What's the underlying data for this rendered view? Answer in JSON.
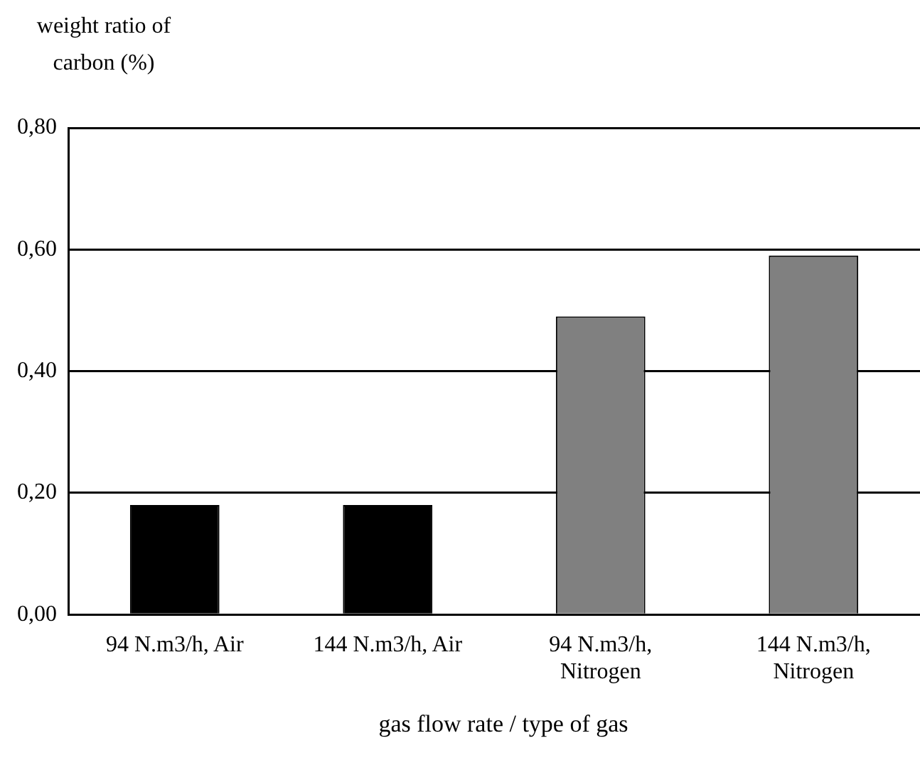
{
  "chart_data": {
    "type": "bar",
    "ylabel": "weight ratio of carbon (%)",
    "xlabel": "gas flow rate / type of gas",
    "categories": [
      "94 N.m3/h, Air",
      "144 N.m3/h, Air",
      "94 N.m3/h, Nitrogen",
      "144 N.m3/h, Nitrogen"
    ],
    "values": [
      0.18,
      0.18,
      0.49,
      0.59
    ],
    "colors": [
      "#000000",
      "#000000",
      "#808080",
      "#808080"
    ],
    "ylim": [
      0,
      0.8
    ],
    "yticks": [
      {
        "value": 0,
        "label": "0,00"
      },
      {
        "value": 0.2,
        "label": "0,20"
      },
      {
        "value": 0.4,
        "label": "0,40"
      },
      {
        "value": 0.6,
        "label": "0,60"
      },
      {
        "value": 0.8,
        "label": "0,80"
      }
    ],
    "grid": "y",
    "legend": false
  }
}
